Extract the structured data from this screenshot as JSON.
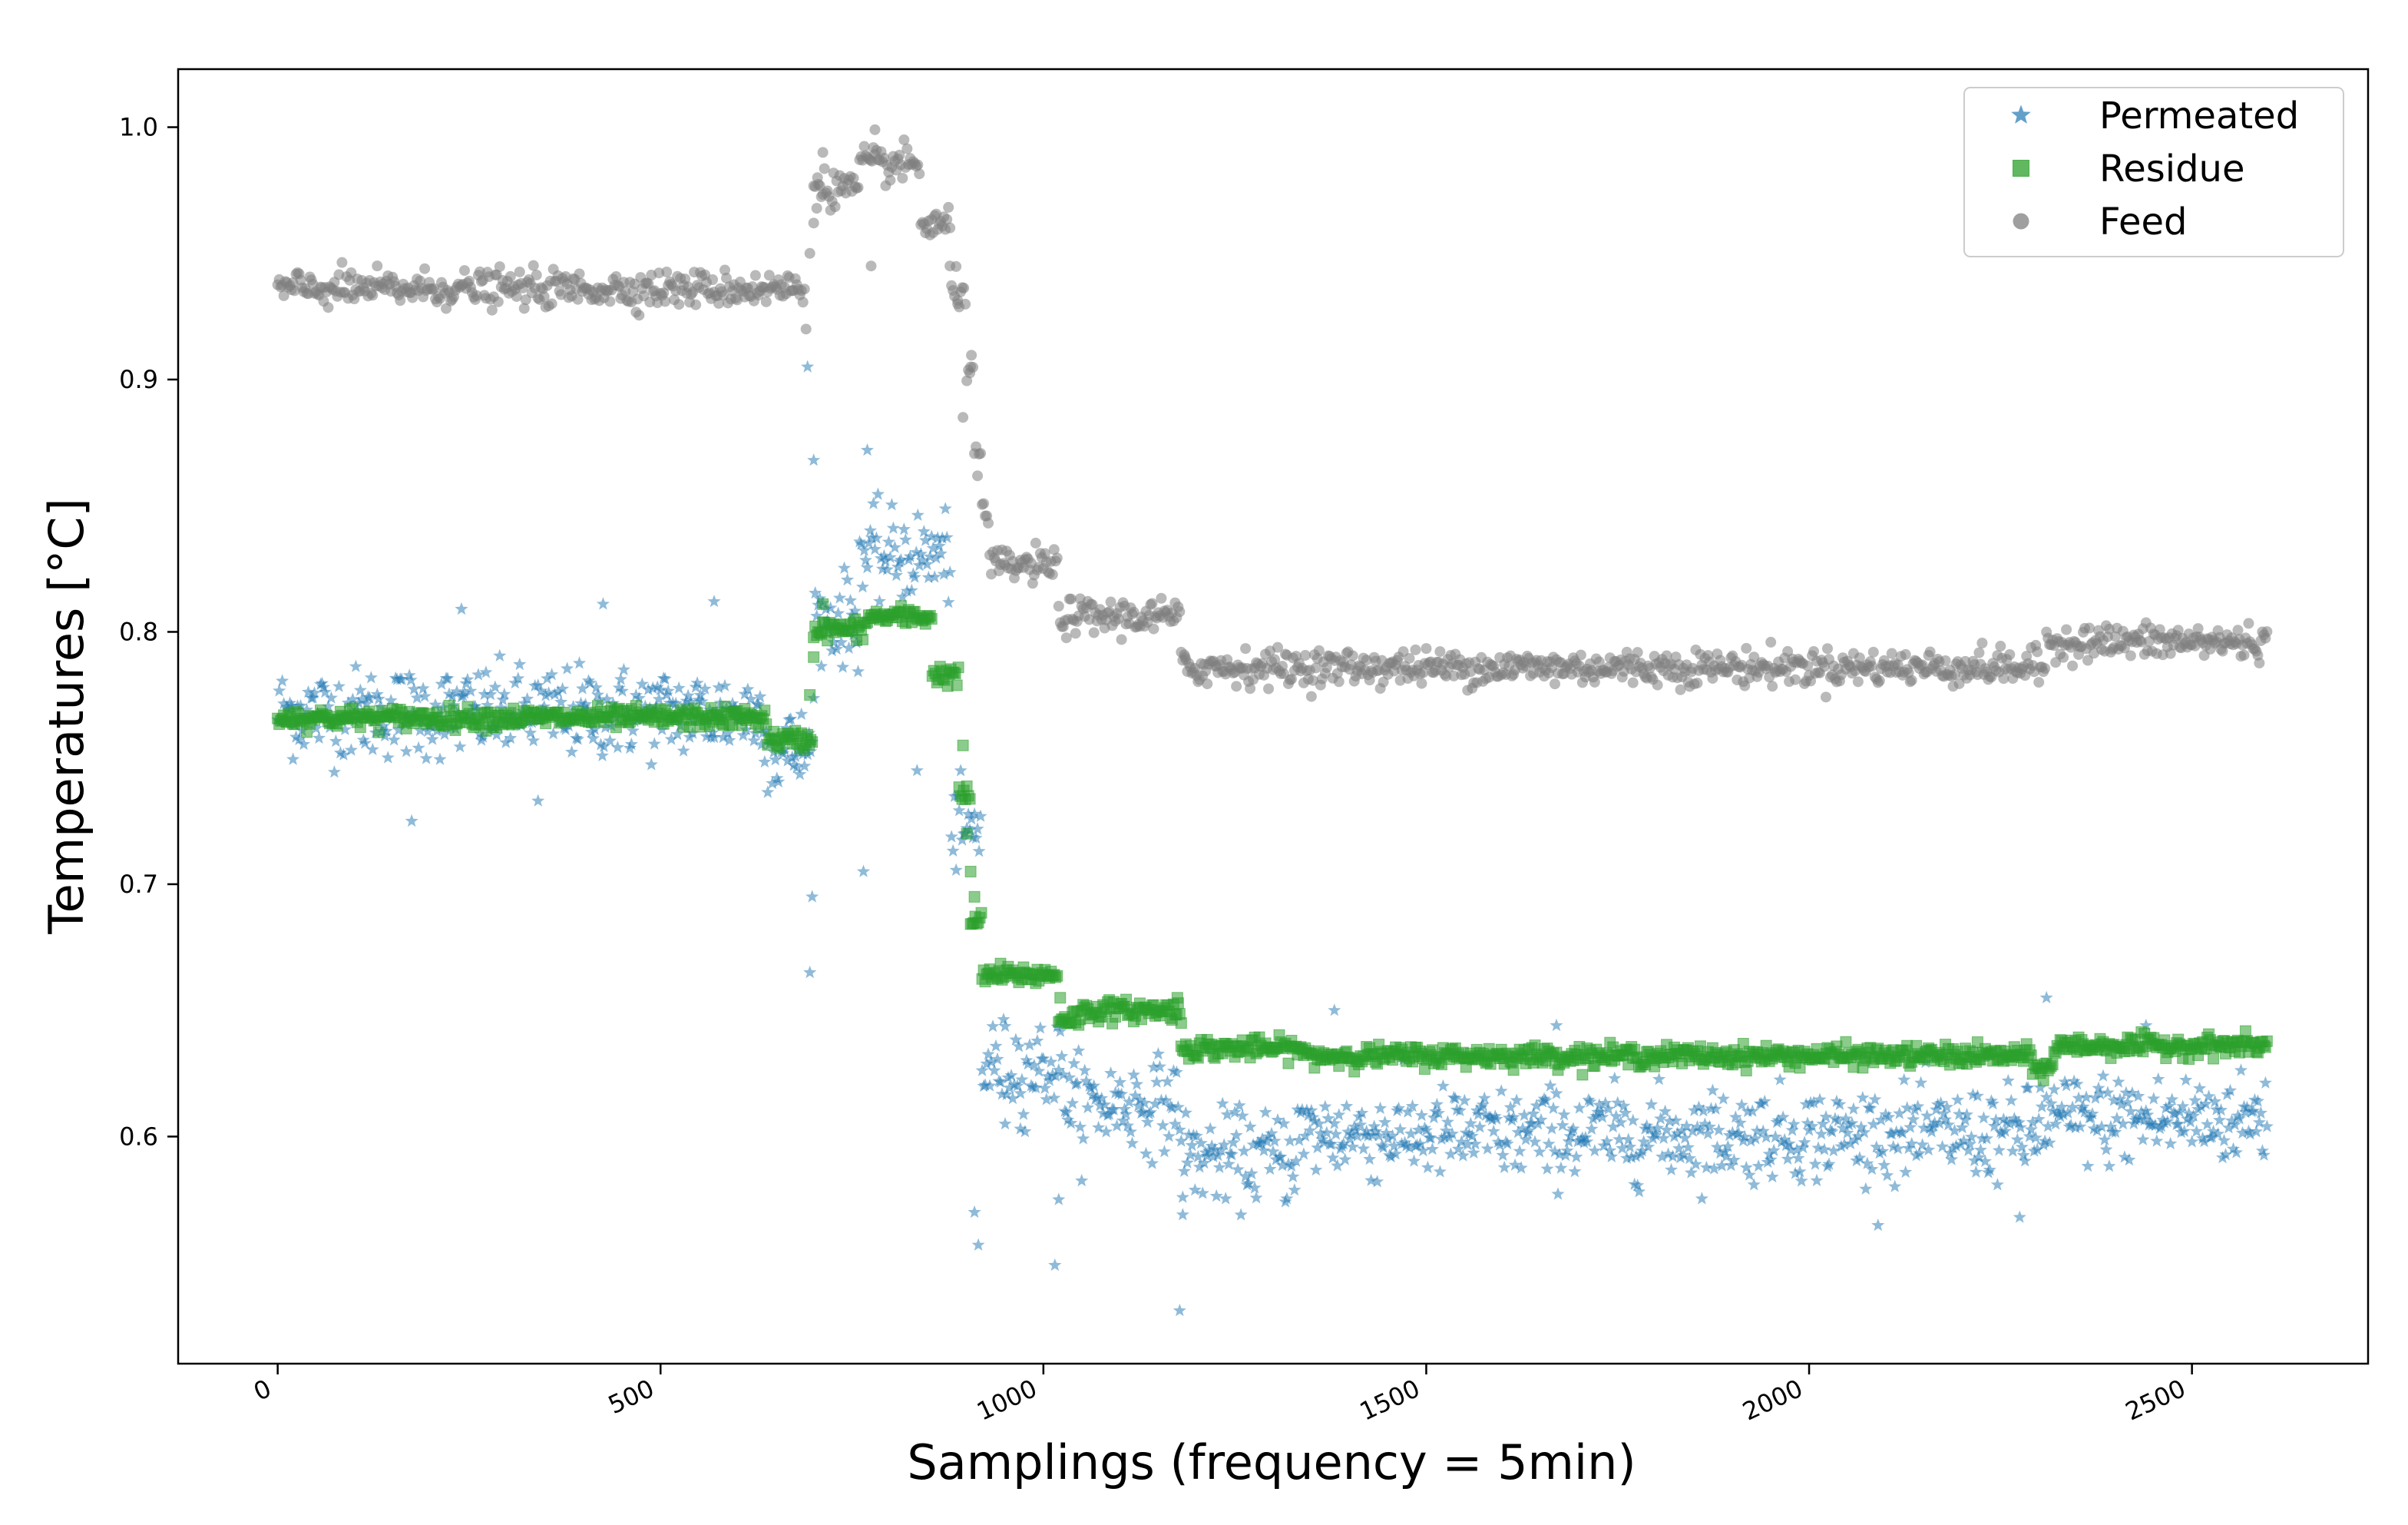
{
  "chart_data": {
    "type": "scatter",
    "title": "",
    "xlabel": "Samplings (frequency = 5min)",
    "ylabel": "Temperatures [°C]",
    "xlim": [
      -130,
      2730
    ],
    "ylim": [
      0.51,
      1.023
    ],
    "x_ticks": [
      0,
      500,
      1000,
      1500,
      2000,
      2500
    ],
    "x_tick_labels": [
      "0",
      "500",
      "1000",
      "1500",
      "2000",
      "2500"
    ],
    "y_ticks": [
      0.6,
      0.7,
      0.8,
      0.9,
      1.0
    ],
    "y_tick_labels": [
      "0.6",
      "0.7",
      "0.8",
      "0.9",
      "1.0"
    ],
    "grid": false,
    "legend_position": "top-right",
    "series": [
      {
        "name": "Permeated",
        "marker": "star",
        "color": "#1f77b4",
        "opacity": 0.5,
        "noise": 0.009,
        "segments": [
          {
            "from": 0,
            "to": 640,
            "value": 0.768
          },
          {
            "from": 640,
            "to": 700,
            "value": 0.752
          },
          {
            "from": 700,
            "to": 760,
            "value": 0.805
          },
          {
            "from": 760,
            "to": 880,
            "value": 0.83
          },
          {
            "from": 880,
            "to": 920,
            "value": 0.72
          },
          {
            "from": 920,
            "to": 1030,
            "value": 0.628
          },
          {
            "from": 1030,
            "to": 1180,
            "value": 0.613
          },
          {
            "from": 1180,
            "to": 1330,
            "value": 0.592
          },
          {
            "from": 1330,
            "to": 2300,
            "value": 0.601
          },
          {
            "from": 2300,
            "to": 2600,
            "value": 0.607
          }
        ],
        "outliers": [
          {
            "x": 175,
            "y": 0.725
          },
          {
            "x": 240,
            "y": 0.809
          },
          {
            "x": 340,
            "y": 0.733
          },
          {
            "x": 425,
            "y": 0.811
          },
          {
            "x": 570,
            "y": 0.812
          },
          {
            "x": 692,
            "y": 0.905
          },
          {
            "x": 695,
            "y": 0.665
          },
          {
            "x": 698,
            "y": 0.695
          },
          {
            "x": 700,
            "y": 0.868
          },
          {
            "x": 770,
            "y": 0.872
          },
          {
            "x": 765,
            "y": 0.705
          },
          {
            "x": 835,
            "y": 0.745
          },
          {
            "x": 910,
            "y": 0.57
          },
          {
            "x": 915,
            "y": 0.557
          },
          {
            "x": 1015,
            "y": 0.549
          },
          {
            "x": 1020,
            "y": 0.575
          },
          {
            "x": 1178,
            "y": 0.531
          },
          {
            "x": 1182,
            "y": 0.569
          },
          {
            "x": 2275,
            "y": 0.568
          },
          {
            "x": 2310,
            "y": 0.655
          },
          {
            "x": 1380,
            "y": 0.65
          },
          {
            "x": 1670,
            "y": 0.644
          },
          {
            "x": 2440,
            "y": 0.644
          },
          {
            "x": 950,
            "y": 0.605
          },
          {
            "x": 970,
            "y": 0.603
          }
        ]
      },
      {
        "name": "Residue",
        "marker": "square",
        "color": "#2ca02c",
        "opacity": 0.55,
        "noise": 0.002,
        "segments": [
          {
            "from": 0,
            "to": 640,
            "value": 0.766
          },
          {
            "from": 640,
            "to": 700,
            "value": 0.757
          },
          {
            "from": 700,
            "to": 770,
            "value": 0.801
          },
          {
            "from": 770,
            "to": 855,
            "value": 0.806
          },
          {
            "from": 855,
            "to": 890,
            "value": 0.783
          },
          {
            "from": 890,
            "to": 905,
            "value": 0.735
          },
          {
            "from": 905,
            "to": 920,
            "value": 0.685
          },
          {
            "from": 920,
            "to": 1020,
            "value": 0.664
          },
          {
            "from": 1020,
            "to": 1050,
            "value": 0.647
          },
          {
            "from": 1050,
            "to": 1180,
            "value": 0.65
          },
          {
            "from": 1180,
            "to": 1340,
            "value": 0.635
          },
          {
            "from": 1340,
            "to": 2290,
            "value": 0.632
          },
          {
            "from": 2290,
            "to": 2320,
            "value": 0.627
          },
          {
            "from": 2320,
            "to": 2600,
            "value": 0.636
          }
        ],
        "outliers": [
          {
            "x": 695,
            "y": 0.775
          },
          {
            "x": 700,
            "y": 0.79
          },
          {
            "x": 712,
            "y": 0.811
          },
          {
            "x": 895,
            "y": 0.755
          },
          {
            "x": 900,
            "y": 0.72
          },
          {
            "x": 905,
            "y": 0.705
          },
          {
            "x": 910,
            "y": 0.695
          },
          {
            "x": 1180,
            "y": 0.645
          },
          {
            "x": 1175,
            "y": 0.655
          },
          {
            "x": 1022,
            "y": 0.655
          }
        ]
      },
      {
        "name": "Feed",
        "marker": "circle",
        "color": "#7f7f7f",
        "opacity": 0.55,
        "noise": 0.0035,
        "segments": [
          {
            "from": 0,
            "to": 690,
            "value": 0.936
          },
          {
            "from": 700,
            "to": 760,
            "value": 0.976
          },
          {
            "from": 760,
            "to": 840,
            "value": 0.985
          },
          {
            "from": 840,
            "to": 880,
            "value": 0.961
          },
          {
            "from": 880,
            "to": 900,
            "value": 0.935
          },
          {
            "from": 900,
            "to": 910,
            "value": 0.906
          },
          {
            "from": 910,
            "to": 920,
            "value": 0.866
          },
          {
            "from": 920,
            "to": 930,
            "value": 0.846
          },
          {
            "from": 930,
            "to": 1020,
            "value": 0.826
          },
          {
            "from": 1020,
            "to": 1180,
            "value": 0.806
          },
          {
            "from": 1180,
            "to": 2310,
            "value": 0.786
          },
          {
            "from": 2310,
            "to": 2600,
            "value": 0.796
          }
        ],
        "outliers": [
          {
            "x": 690,
            "y": 0.92
          },
          {
            "x": 695,
            "y": 0.95
          },
          {
            "x": 700,
            "y": 0.962
          },
          {
            "x": 705,
            "y": 0.98
          },
          {
            "x": 712,
            "y": 0.99
          },
          {
            "x": 780,
            "y": 0.999
          },
          {
            "x": 775,
            "y": 0.945
          },
          {
            "x": 878,
            "y": 0.945
          },
          {
            "x": 888,
            "y": 0.93
          },
          {
            "x": 895,
            "y": 0.885
          },
          {
            "x": 905,
            "y": 0.905
          },
          {
            "x": 1185,
            "y": 0.79
          }
        ]
      }
    ]
  }
}
